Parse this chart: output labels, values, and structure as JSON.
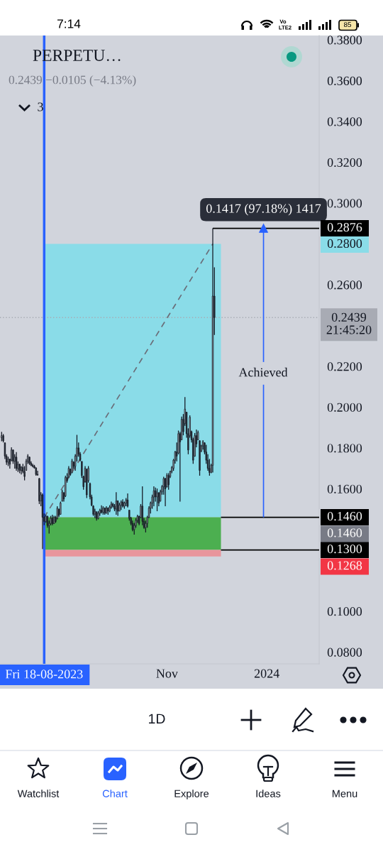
{
  "chart_data": {
    "type": "candlestick",
    "title": "PERPETU…",
    "subtitle": "0.2439 −0.0105 (−4.13%)",
    "x": [
      "2023-07-23",
      "2023-07-24",
      "2023-07-25",
      "2023-07-26",
      "2023-07-27",
      "2023-07-28",
      "2023-07-29",
      "2023-07-30",
      "2023-07-31",
      "2023-08-01",
      "2023-08-02",
      "2023-08-03",
      "2023-08-04",
      "2023-08-05",
      "2023-08-06",
      "2023-08-07",
      "2023-08-08",
      "2023-08-09",
      "2023-08-10",
      "2023-08-11",
      "2023-08-12",
      "2023-08-13",
      "2023-08-14",
      "2023-08-15",
      "2023-08-16",
      "2023-08-17",
      "2023-08-18",
      "2023-08-19",
      "2023-08-20",
      "2023-08-21",
      "2023-08-22",
      "2023-08-23",
      "2023-08-24",
      "2023-08-25",
      "2023-08-26",
      "2023-08-27",
      "2023-08-28",
      "2023-08-29",
      "2023-08-30",
      "2023-08-31",
      "2023-09-01",
      "2023-09-02",
      "2023-09-03",
      "2023-09-04",
      "2023-09-05",
      "2023-09-06",
      "2023-09-07",
      "2023-09-08",
      "2023-09-09",
      "2023-09-10",
      "2023-09-11",
      "2023-09-12",
      "2023-09-13",
      "2023-09-14",
      "2023-09-15",
      "2023-09-16",
      "2023-09-17",
      "2023-09-18",
      "2023-09-19",
      "2023-09-20",
      "2023-09-21",
      "2023-09-22",
      "2023-09-23",
      "2023-09-24",
      "2023-09-25",
      "2023-09-26",
      "2023-09-27",
      "2023-09-28",
      "2023-09-29",
      "2023-09-30",
      "2023-10-01",
      "2023-10-02",
      "2023-10-03",
      "2023-10-04",
      "2023-10-05",
      "2023-10-06",
      "2023-10-07",
      "2023-10-08",
      "2023-10-09",
      "2023-10-10",
      "2023-10-11",
      "2023-10-12",
      "2023-10-13",
      "2023-10-14",
      "2023-10-15",
      "2023-10-16",
      "2023-10-17",
      "2023-10-18",
      "2023-10-19",
      "2023-10-20",
      "2023-10-21",
      "2023-10-22",
      "2023-10-23",
      "2023-10-24",
      "2023-10-25",
      "2023-10-26",
      "2023-10-27",
      "2023-10-28",
      "2023-10-29",
      "2023-10-30",
      "2023-10-31",
      "2023-11-01",
      "2023-11-02",
      "2023-11-03",
      "2023-11-04",
      "2023-11-05",
      "2023-11-06",
      "2023-11-07",
      "2023-11-08",
      "2023-11-09",
      "2023-11-10",
      "2023-11-11",
      "2023-11-12",
      "2023-11-13",
      "2023-11-14",
      "2023-11-15",
      "2023-11-16",
      "2023-11-17",
      "2023-11-18",
      "2023-11-19",
      "2023-11-20",
      "2023-11-21",
      "2023-11-22",
      "2023-11-23",
      "2023-11-24",
      "2023-11-25",
      "2023-11-26",
      "2023-11-27",
      "2023-11-28",
      "2023-11-29",
      "2023-11-30"
    ],
    "ohlc": [
      [
        0.185,
        0.1879,
        0.1833,
        0.186
      ],
      [
        0.186,
        0.1868,
        0.1827,
        0.1835
      ],
      [
        0.1825,
        0.1827,
        0.1746,
        0.176
      ],
      [
        0.176,
        0.1769,
        0.1717,
        0.173
      ],
      [
        0.173,
        0.1757,
        0.1711,
        0.1745
      ],
      [
        0.1745,
        0.1746,
        0.1699,
        0.172
      ],
      [
        0.174,
        0.1803,
        0.1734,
        0.179
      ],
      [
        0.179,
        0.1792,
        0.1722,
        0.1735
      ],
      [
        0.1735,
        0.1769,
        0.1699,
        0.1755
      ],
      [
        0.1755,
        0.178,
        0.1688,
        0.17
      ],
      [
        0.17,
        0.1734,
        0.1682,
        0.172
      ],
      [
        0.172,
        0.1722,
        0.1676,
        0.169
      ],
      [
        0.169,
        0.1711,
        0.167,
        0.1705
      ],
      [
        0.1705,
        0.1722,
        0.1676,
        0.1685
      ],
      [
        0.1685,
        0.1711,
        0.1641,
        0.166
      ],
      [
        0.169,
        0.1746,
        0.1688,
        0.1735
      ],
      [
        0.1735,
        0.1769,
        0.1722,
        0.176
      ],
      [
        0.1755,
        0.1757,
        0.1717,
        0.1725
      ],
      [
        0.1725,
        0.1734,
        0.1711,
        0.1715
      ],
      [
        0.1715,
        0.1722,
        0.1705,
        0.171
      ],
      [
        0.171,
        0.1717,
        0.1699,
        0.1702
      ],
      [
        0.1702,
        0.1705,
        0.1664,
        0.167
      ],
      [
        0.167,
        0.1688,
        0.1664,
        0.1668
      ],
      [
        0.165,
        0.1653,
        0.1525,
        0.154
      ],
      [
        0.154,
        0.1583,
        0.1514,
        0.157
      ],
      [
        0.157,
        0.1577,
        0.1305,
        0.146
      ],
      [
        0.146,
        0.1479,
        0.1421,
        0.144
      ],
      [
        0.144,
        0.1473,
        0.1433,
        0.1465
      ],
      [
        0.1465,
        0.1467,
        0.1409,
        0.142
      ],
      [
        0.142,
        0.1444,
        0.138,
        0.143
      ],
      [
        0.143,
        0.1467,
        0.1421,
        0.1455
      ],
      [
        0.1455,
        0.1473,
        0.1421,
        0.143
      ],
      [
        0.143,
        0.1467,
        0.1427,
        0.146
      ],
      [
        0.146,
        0.1467,
        0.1433,
        0.144
      ],
      [
        0.1455,
        0.1514,
        0.145,
        0.1505
      ],
      [
        0.15,
        0.1502,
        0.1462,
        0.147
      ],
      [
        0.1475,
        0.1537,
        0.1473,
        0.153
      ],
      [
        0.154,
        0.1595,
        0.1537,
        0.1585
      ],
      [
        0.158,
        0.1583,
        0.1537,
        0.155
      ],
      [
        0.1565,
        0.1664,
        0.156,
        0.1655
      ],
      [
        0.1655,
        0.1676,
        0.163,
        0.164
      ],
      [
        0.166,
        0.1711,
        0.1653,
        0.17
      ],
      [
        0.1695,
        0.1699,
        0.1664,
        0.167
      ],
      [
        0.168,
        0.1746,
        0.1676,
        0.1735
      ],
      [
        0.173,
        0.1734,
        0.1699,
        0.171
      ],
      [
        0.171,
        0.1769,
        0.1688,
        0.176
      ],
      [
        0.176,
        0.1864,
        0.1734,
        0.18
      ],
      [
        0.18,
        0.1827,
        0.1757,
        0.177
      ],
      [
        0.177,
        0.178,
        0.1734,
        0.174
      ],
      [
        0.1734,
        0.1734,
        0.1653,
        0.1665
      ],
      [
        0.166,
        0.1664,
        0.1595,
        0.161
      ],
      [
        0.1635,
        0.1711,
        0.163,
        0.17
      ],
      [
        0.1695,
        0.1699,
        0.1554,
        0.157
      ],
      [
        0.164,
        0.1711,
        0.163,
        0.17
      ],
      [
        0.1625,
        0.163,
        0.1548,
        0.156
      ],
      [
        0.156,
        0.1571,
        0.1514,
        0.152
      ],
      [
        0.1515,
        0.1519,
        0.1467,
        0.1475
      ],
      [
        0.1475,
        0.1502,
        0.1456,
        0.149
      ],
      [
        0.1485,
        0.149,
        0.1444,
        0.1455
      ],
      [
        0.1455,
        0.149,
        0.145,
        0.148
      ],
      [
        0.148,
        0.1502,
        0.1467,
        0.1495
      ],
      [
        0.1495,
        0.1519,
        0.1479,
        0.1485
      ],
      [
        0.1485,
        0.1514,
        0.1473,
        0.1505
      ],
      [
        0.1505,
        0.1508,
        0.1473,
        0.148
      ],
      [
        0.148,
        0.1514,
        0.1479,
        0.1505
      ],
      [
        0.1505,
        0.1508,
        0.1473,
        0.149
      ],
      [
        0.149,
        0.1519,
        0.1485,
        0.151
      ],
      [
        0.151,
        0.1537,
        0.1502,
        0.1525
      ],
      [
        0.1525,
        0.1531,
        0.1508,
        0.1515
      ],
      [
        0.1515,
        0.1525,
        0.149,
        0.15
      ],
      [
        0.15,
        0.1583,
        0.1473,
        0.154
      ],
      [
        0.154,
        0.1543,
        0.1467,
        0.149
      ],
      [
        0.149,
        0.1531,
        0.149,
        0.152
      ],
      [
        0.152,
        0.1543,
        0.1496,
        0.1535
      ],
      [
        0.1535,
        0.1548,
        0.1508,
        0.1515
      ],
      [
        0.1515,
        0.1537,
        0.1502,
        0.153
      ],
      [
        0.153,
        0.1554,
        0.1514,
        0.1545
      ],
      [
        0.1545,
        0.1577,
        0.1508,
        0.1515
      ],
      [
        0.1495,
        0.1496,
        0.1444,
        0.1455
      ],
      [
        0.1455,
        0.1462,
        0.1421,
        0.143
      ],
      [
        0.143,
        0.1444,
        0.1392,
        0.14
      ],
      [
        0.14,
        0.1433,
        0.1375,
        0.142
      ],
      [
        0.142,
        0.1456,
        0.1409,
        0.1445
      ],
      [
        0.1445,
        0.1473,
        0.1433,
        0.1465
      ],
      [
        0.1465,
        0.1467,
        0.1421,
        0.143
      ],
      [
        0.146,
        0.1525,
        0.1456,
        0.1515
      ],
      [
        0.1515,
        0.1612,
        0.1421,
        0.144
      ],
      [
        0.144,
        0.1456,
        0.1404,
        0.141
      ],
      [
        0.141,
        0.1444,
        0.1386,
        0.143
      ],
      [
        0.143,
        0.1467,
        0.1409,
        0.146
      ],
      [
        0.146,
        0.1514,
        0.1456,
        0.1505
      ],
      [
        0.1505,
        0.1537,
        0.1479,
        0.153
      ],
      [
        0.153,
        0.1571,
        0.1502,
        0.156
      ],
      [
        0.156,
        0.1612,
        0.1514,
        0.159
      ],
      [
        0.159,
        0.1606,
        0.1537,
        0.156
      ],
      [
        0.156,
        0.1601,
        0.149,
        0.158
      ],
      [
        0.158,
        0.1583,
        0.1514,
        0.153
      ],
      [
        0.154,
        0.1595,
        0.1537,
        0.1585
      ],
      [
        0.1585,
        0.1618,
        0.1571,
        0.161
      ],
      [
        0.161,
        0.1659,
        0.1571,
        0.165
      ],
      [
        0.165,
        0.1653,
        0.1514,
        0.16
      ],
      [
        0.161,
        0.1676,
        0.1606,
        0.1665
      ],
      [
        0.1665,
        0.1676,
        0.1595,
        0.162
      ],
      [
        0.166,
        0.1688,
        0.1653,
        0.1685
      ],
      [
        0.1685,
        0.1711,
        0.1676,
        0.1705
      ],
      [
        0.17,
        0.1746,
        0.1688,
        0.174
      ],
      [
        0.174,
        0.1786,
        0.1723,
        0.178
      ],
      [
        0.178,
        0.1827,
        0.1734,
        0.176
      ],
      [
        0.1775,
        0.1885,
        0.1769,
        0.187
      ],
      [
        0.187,
        0.1879,
        0.1537,
        0.183
      ],
      [
        0.184,
        0.1954,
        0.1838,
        0.194
      ],
      [
        0.194,
        0.1966,
        0.1862,
        0.188
      ],
      [
        0.192,
        0.2049,
        0.1908,
        0.199
      ],
      [
        0.1975,
        0.1977,
        0.185,
        0.187
      ],
      [
        0.187,
        0.1896,
        0.1769,
        0.179
      ],
      [
        0.186,
        0.196,
        0.185,
        0.195
      ],
      [
        0.188,
        0.1885,
        0.1827,
        0.184
      ],
      [
        0.184,
        0.185,
        0.1722,
        0.174
      ],
      [
        0.176,
        0.1873,
        0.1757,
        0.186
      ],
      [
        0.186,
        0.189,
        0.1803,
        0.182
      ],
      [
        0.184,
        0.1885,
        0.1838,
        0.1875
      ],
      [
        0.1835,
        0.1838,
        0.1664,
        0.169
      ],
      [
        0.1785,
        0.1815,
        0.178,
        0.181
      ],
      [
        0.181,
        0.1838,
        0.1792,
        0.183
      ],
      [
        0.1825,
        0.1827,
        0.1769,
        0.178
      ],
      [
        0.178,
        0.1815,
        0.1722,
        0.174
      ],
      [
        0.174,
        0.1769,
        0.1688,
        0.17
      ],
      [
        0.17,
        0.1746,
        0.1664,
        0.168
      ],
      [
        0.168,
        0.1722,
        0.1676,
        0.1715
      ],
      [
        0.1715,
        0.2876,
        0.168,
        0.2544
      ],
      [
        0.2544,
        0.2685,
        0.2354,
        0.2439
      ]
    ],
    "xlim": [
      "2023-07-22",
      "2024-02-02"
    ],
    "ylim": [
      0.0742,
      0.3821
    ],
    "xticks": [
      {
        "value": "2023-11-01",
        "label": "Nov"
      },
      {
        "value": "2024-01-01",
        "label": "2024"
      }
    ],
    "yticks": [
      {
        "value": 0.38,
        "label": "0.3800"
      },
      {
        "value": 0.36,
        "label": "0.3600"
      },
      {
        "value": 0.34,
        "label": "0.3400"
      },
      {
        "value": 0.32,
        "label": "0.3200"
      },
      {
        "value": 0.3,
        "label": "0.3000"
      },
      {
        "value": 0.26,
        "label": "0.2600"
      },
      {
        "value": 0.22,
        "label": "0.2200"
      },
      {
        "value": 0.2,
        "label": "0.2000"
      },
      {
        "value": 0.18,
        "label": "0.1800"
      },
      {
        "value": 0.16,
        "label": "0.1600"
      },
      {
        "value": 0.1,
        "label": "0.1000"
      },
      {
        "value": 0.08,
        "label": "0.0800"
      }
    ],
    "series": [
      {
        "type": "bar",
        "x": [
          "2023-10-11"
        ],
        "base": [
          0.146
        ],
        "values": [
          0.134
        ],
        "color": "#8adce8"
      },
      {
        "type": "bar",
        "x": [
          "2023-10-11"
        ],
        "base": [
          0.13
        ],
        "values": [
          0.016
        ],
        "color": "#4caf50"
      },
      {
        "type": "bar",
        "x": [
          "2023-10-11"
        ],
        "base": [
          0.1268
        ],
        "values": [
          0.0032
        ],
        "color": "#e8959c"
      },
      {
        "type": "line",
        "x": [
          "2023-08-18",
          "2023-11-29"
        ],
        "values": [
          0.146,
          0.28
        ],
        "color": "#6a6d78",
        "line_style": "dashed"
      },
      {
        "type": "line",
        "x": [
          "2023-11-29",
          "2024-02-02"
        ],
        "values": [
          0.2876,
          0.2876
        ],
        "color": "#000000",
        "value_labels": [
          null,
          "0.2876"
        ]
      },
      {
        "type": "line",
        "x": [
          "2023-12-04",
          "2024-02-02"
        ],
        "values": [
          0.146,
          0.146
        ],
        "color": "#000000",
        "value_labels": [
          null,
          "0.1460"
        ]
      },
      {
        "type": "line",
        "x": [
          "2023-12-04",
          "2024-02-02"
        ],
        "values": [
          0.13,
          0.13
        ],
        "color": "#000000",
        "value_labels": [
          null,
          "0.1300"
        ]
      },
      {
        "type": "line",
        "x": [
          "2023-12-30",
          "2023-12-30"
        ],
        "values": [
          0.146,
          0.211
        ],
        "color": "#2962ff"
      },
      {
        "type": "line",
        "x": [
          "2023-12-30",
          "2023-12-30"
        ],
        "values": [
          0.2221,
          0.2876
        ],
        "color": "#2962ff",
        "marker": "triangle"
      }
    ],
    "ref_lines": [
      {
        "axis": "y",
        "value": 0.2439,
        "label": "0.2439\n21:45:20",
        "color": "#a8abb4",
        "line_style": "dotted"
      },
      {
        "axis": "x",
        "value": "2023-08-18",
        "label": "Fri 18-08-2023",
        "color": "#2962ff"
      }
    ],
    "annotations": [
      "3",
      "7:14",
      "Vo",
      "LTE2",
      "85",
      "1D",
      "Watchlist",
      "Chart",
      "Explore",
      "Ideas",
      "Menu",
      "Achieved",
      "0.2800",
      "0.1460",
      "0.1268",
      {
        "text": "0.1417 (97.18%) 1417",
        "x": "2023-12-30",
        "y": 0.2876
      }
    ]
  }
}
